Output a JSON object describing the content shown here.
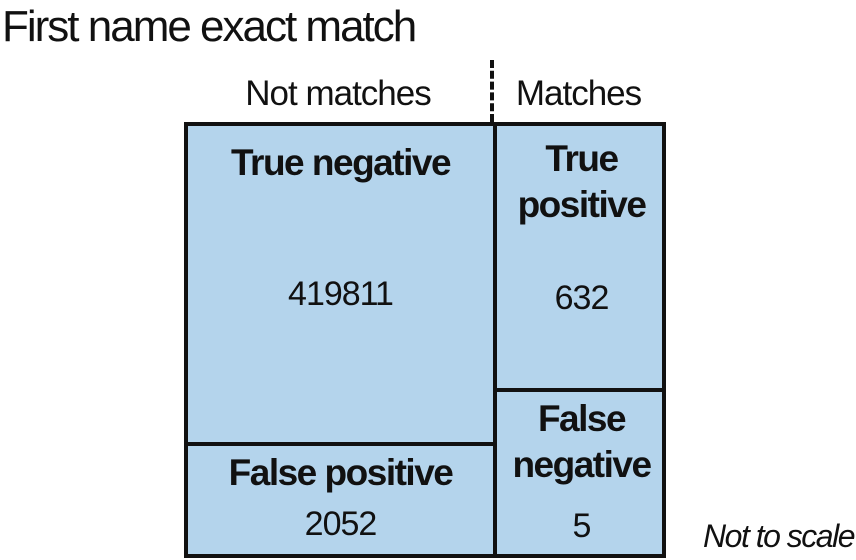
{
  "title": "First name exact match",
  "columns": {
    "left": "Not matches",
    "right": "Matches"
  },
  "cells": {
    "true_negative": {
      "label": "True negative",
      "value": "419811"
    },
    "true_positive": {
      "label_line1": "True",
      "label_line2": "positive",
      "value": "632"
    },
    "false_positive": {
      "label": "False positive",
      "value": "2052"
    },
    "false_negative": {
      "label_line1": "False",
      "label_line2": "negative",
      "value": "5"
    }
  },
  "note": "Not to scale",
  "colors": {
    "cell_fill": "#b4d4ec",
    "line": "#111111"
  }
}
